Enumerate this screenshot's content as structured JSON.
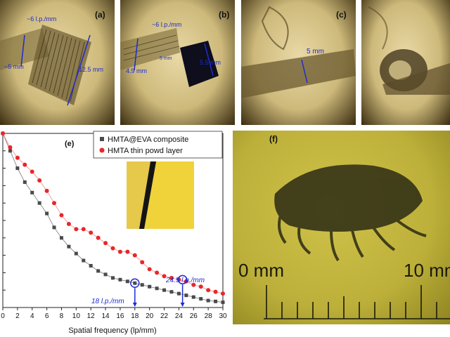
{
  "panels": {
    "a": {
      "label": "(a)",
      "ann_lp": "~6 l.p./mm",
      "ann_left": "~5 mm",
      "ann_length": "12.5 mm"
    },
    "b": {
      "label": "(b)",
      "ann_lp": "~6 l.p./mm",
      "ann_left": "4.9 mm",
      "ann_small": "5 mm",
      "ann_square": "5.5 mm"
    },
    "c": {
      "label": "(c)",
      "ann_width": "5 mm"
    },
    "d": {},
    "e": {
      "label": "(e)"
    },
    "f": {
      "label": "(f)",
      "scale_left": "0 mm",
      "scale_right": "10 mm"
    }
  },
  "chart_data": {
    "type": "scatter",
    "xlabel": "Spatial frequency (lp/mm)",
    "ylabel": "",
    "xlim": [
      0,
      30
    ],
    "ylim": [
      0,
      1
    ],
    "xticks": [
      0,
      2,
      4,
      6,
      8,
      10,
      12,
      14,
      16,
      18,
      20,
      22,
      24,
      26,
      28,
      30
    ],
    "legend_position": "top-right",
    "series": [
      {
        "name": "HMTA@EVA composite",
        "color": "#4a4a4a",
        "marker": "square",
        "x": [
          0,
          1,
          2,
          3,
          4,
          5,
          6,
          7,
          8,
          9,
          10,
          11,
          12,
          13,
          14,
          15,
          16,
          17,
          18,
          19,
          20,
          21,
          22,
          23,
          24,
          25,
          26,
          27,
          28,
          29,
          30
        ],
        "y": [
          1.0,
          0.9,
          0.8,
          0.72,
          0.66,
          0.6,
          0.54,
          0.46,
          0.4,
          0.35,
          0.31,
          0.27,
          0.24,
          0.21,
          0.19,
          0.17,
          0.16,
          0.15,
          0.14,
          0.13,
          0.12,
          0.11,
          0.1,
          0.09,
          0.08,
          0.07,
          0.06,
          0.05,
          0.04,
          0.035,
          0.03
        ]
      },
      {
        "name": "HMTA thin powd layer",
        "color": "#e8262a",
        "marker": "circle",
        "x": [
          0,
          1,
          2,
          3,
          4,
          5,
          6,
          7,
          8,
          9,
          10,
          11,
          12,
          13,
          14,
          15,
          16,
          17,
          18,
          19,
          20,
          21,
          22,
          23,
          24,
          25,
          26,
          27,
          28,
          29,
          30
        ],
        "y": [
          1.0,
          0.92,
          0.86,
          0.82,
          0.78,
          0.73,
          0.67,
          0.6,
          0.53,
          0.48,
          0.45,
          0.45,
          0.43,
          0.4,
          0.37,
          0.34,
          0.32,
          0.32,
          0.3,
          0.26,
          0.22,
          0.2,
          0.18,
          0.17,
          0.16,
          0.15,
          0.13,
          0.12,
          0.1,
          0.09,
          0.08
        ]
      }
    ],
    "annotations": [
      {
        "text": "18 l.p./mm",
        "x": 18,
        "y": 0.14
      },
      {
        "text": "24.5 l.p./mm",
        "x": 24.5,
        "y": 0.16
      }
    ]
  }
}
